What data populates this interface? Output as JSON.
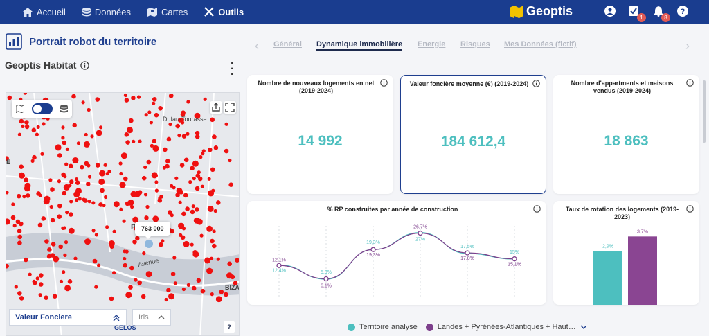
{
  "nav": {
    "items": [
      {
        "label": "Accueil",
        "icon": "home-icon"
      },
      {
        "label": "Données",
        "icon": "database-icon"
      },
      {
        "label": "Cartes",
        "icon": "map-icon"
      },
      {
        "label": "Outils",
        "icon": "tools-icon"
      }
    ],
    "active": "Outils",
    "brand": "Geoptis",
    "badges": {
      "tasks": "1",
      "notifications": "8"
    }
  },
  "left": {
    "title": "Portrait robot du territoire",
    "subtitle": "Geoptis Habitat",
    "map": {
      "tooltip": "763 000",
      "labels": {
        "dufau": "Dufau-Tourasse",
        "avenue": "Avenue",
        "biza": "BIZA",
        "gelos": "GELOS",
        "e": "E",
        "p": "P"
      },
      "layer_select": "Valeur Fonciere",
      "level_select": "Iris",
      "help": "?"
    }
  },
  "tabs": [
    "Général",
    "Dynamique immobilière",
    "Energie",
    "Risques",
    "Mes Données (fictif)"
  ],
  "active_tab": "Dynamique immobilière",
  "kpis": [
    {
      "title": "Nombre de nouveaux logements en net (2019-2024)",
      "value": "14 992"
    },
    {
      "title": "Valeur foncière moyenne (€) (2019-2024)",
      "value": "184 612,4"
    },
    {
      "title": "Nombre d'appartments et maisons vendus (2019-2024)",
      "value": "18 863"
    }
  ],
  "chart_data": [
    {
      "type": "line",
      "title": "% RP construites par année de construction",
      "categories": [
        "",
        "",
        "",
        "",
        "",
        ""
      ],
      "series": [
        {
          "name": "Territoire analysé",
          "color": "#4dbfbf",
          "values": [
            12.4,
            5.9,
            19.3,
            27,
            17.5,
            15
          ],
          "labels": [
            "12,4%",
            "5,9%",
            "19,3%",
            "27%",
            "17,5%",
            "15%"
          ]
        },
        {
          "name": "Landes + Pyrénées-Atlantiques + Haut…",
          "color": "#7d3f8c",
          "values": [
            12.1,
            6.1,
            19.3,
            26.7,
            17.8,
            15.1
          ],
          "labels": [
            "12,1%",
            "6,1%",
            "19,3%",
            "26,7%",
            "17,8%",
            "15,1%"
          ]
        }
      ]
    },
    {
      "type": "bar",
      "title": "Taux de rotation des logements (2019-2023)",
      "categories": [
        ""
      ],
      "series": [
        {
          "name": "Territoire analysé",
          "color": "#4dbfbf",
          "values": [
            2.9
          ],
          "labels": [
            "2,9%"
          ]
        },
        {
          "name": "Landes + Pyrénées-Atlantiques + Haut…",
          "color": "#8a4592",
          "values": [
            3.7
          ],
          "labels": [
            "3,7%"
          ]
        }
      ]
    }
  ],
  "legend": [
    {
      "label": "Territoire analysé",
      "color": "#4dbfbf"
    },
    {
      "label": "Landes + Pyrénées-Atlantiques + Haut…",
      "color": "#7d3f8c"
    }
  ]
}
